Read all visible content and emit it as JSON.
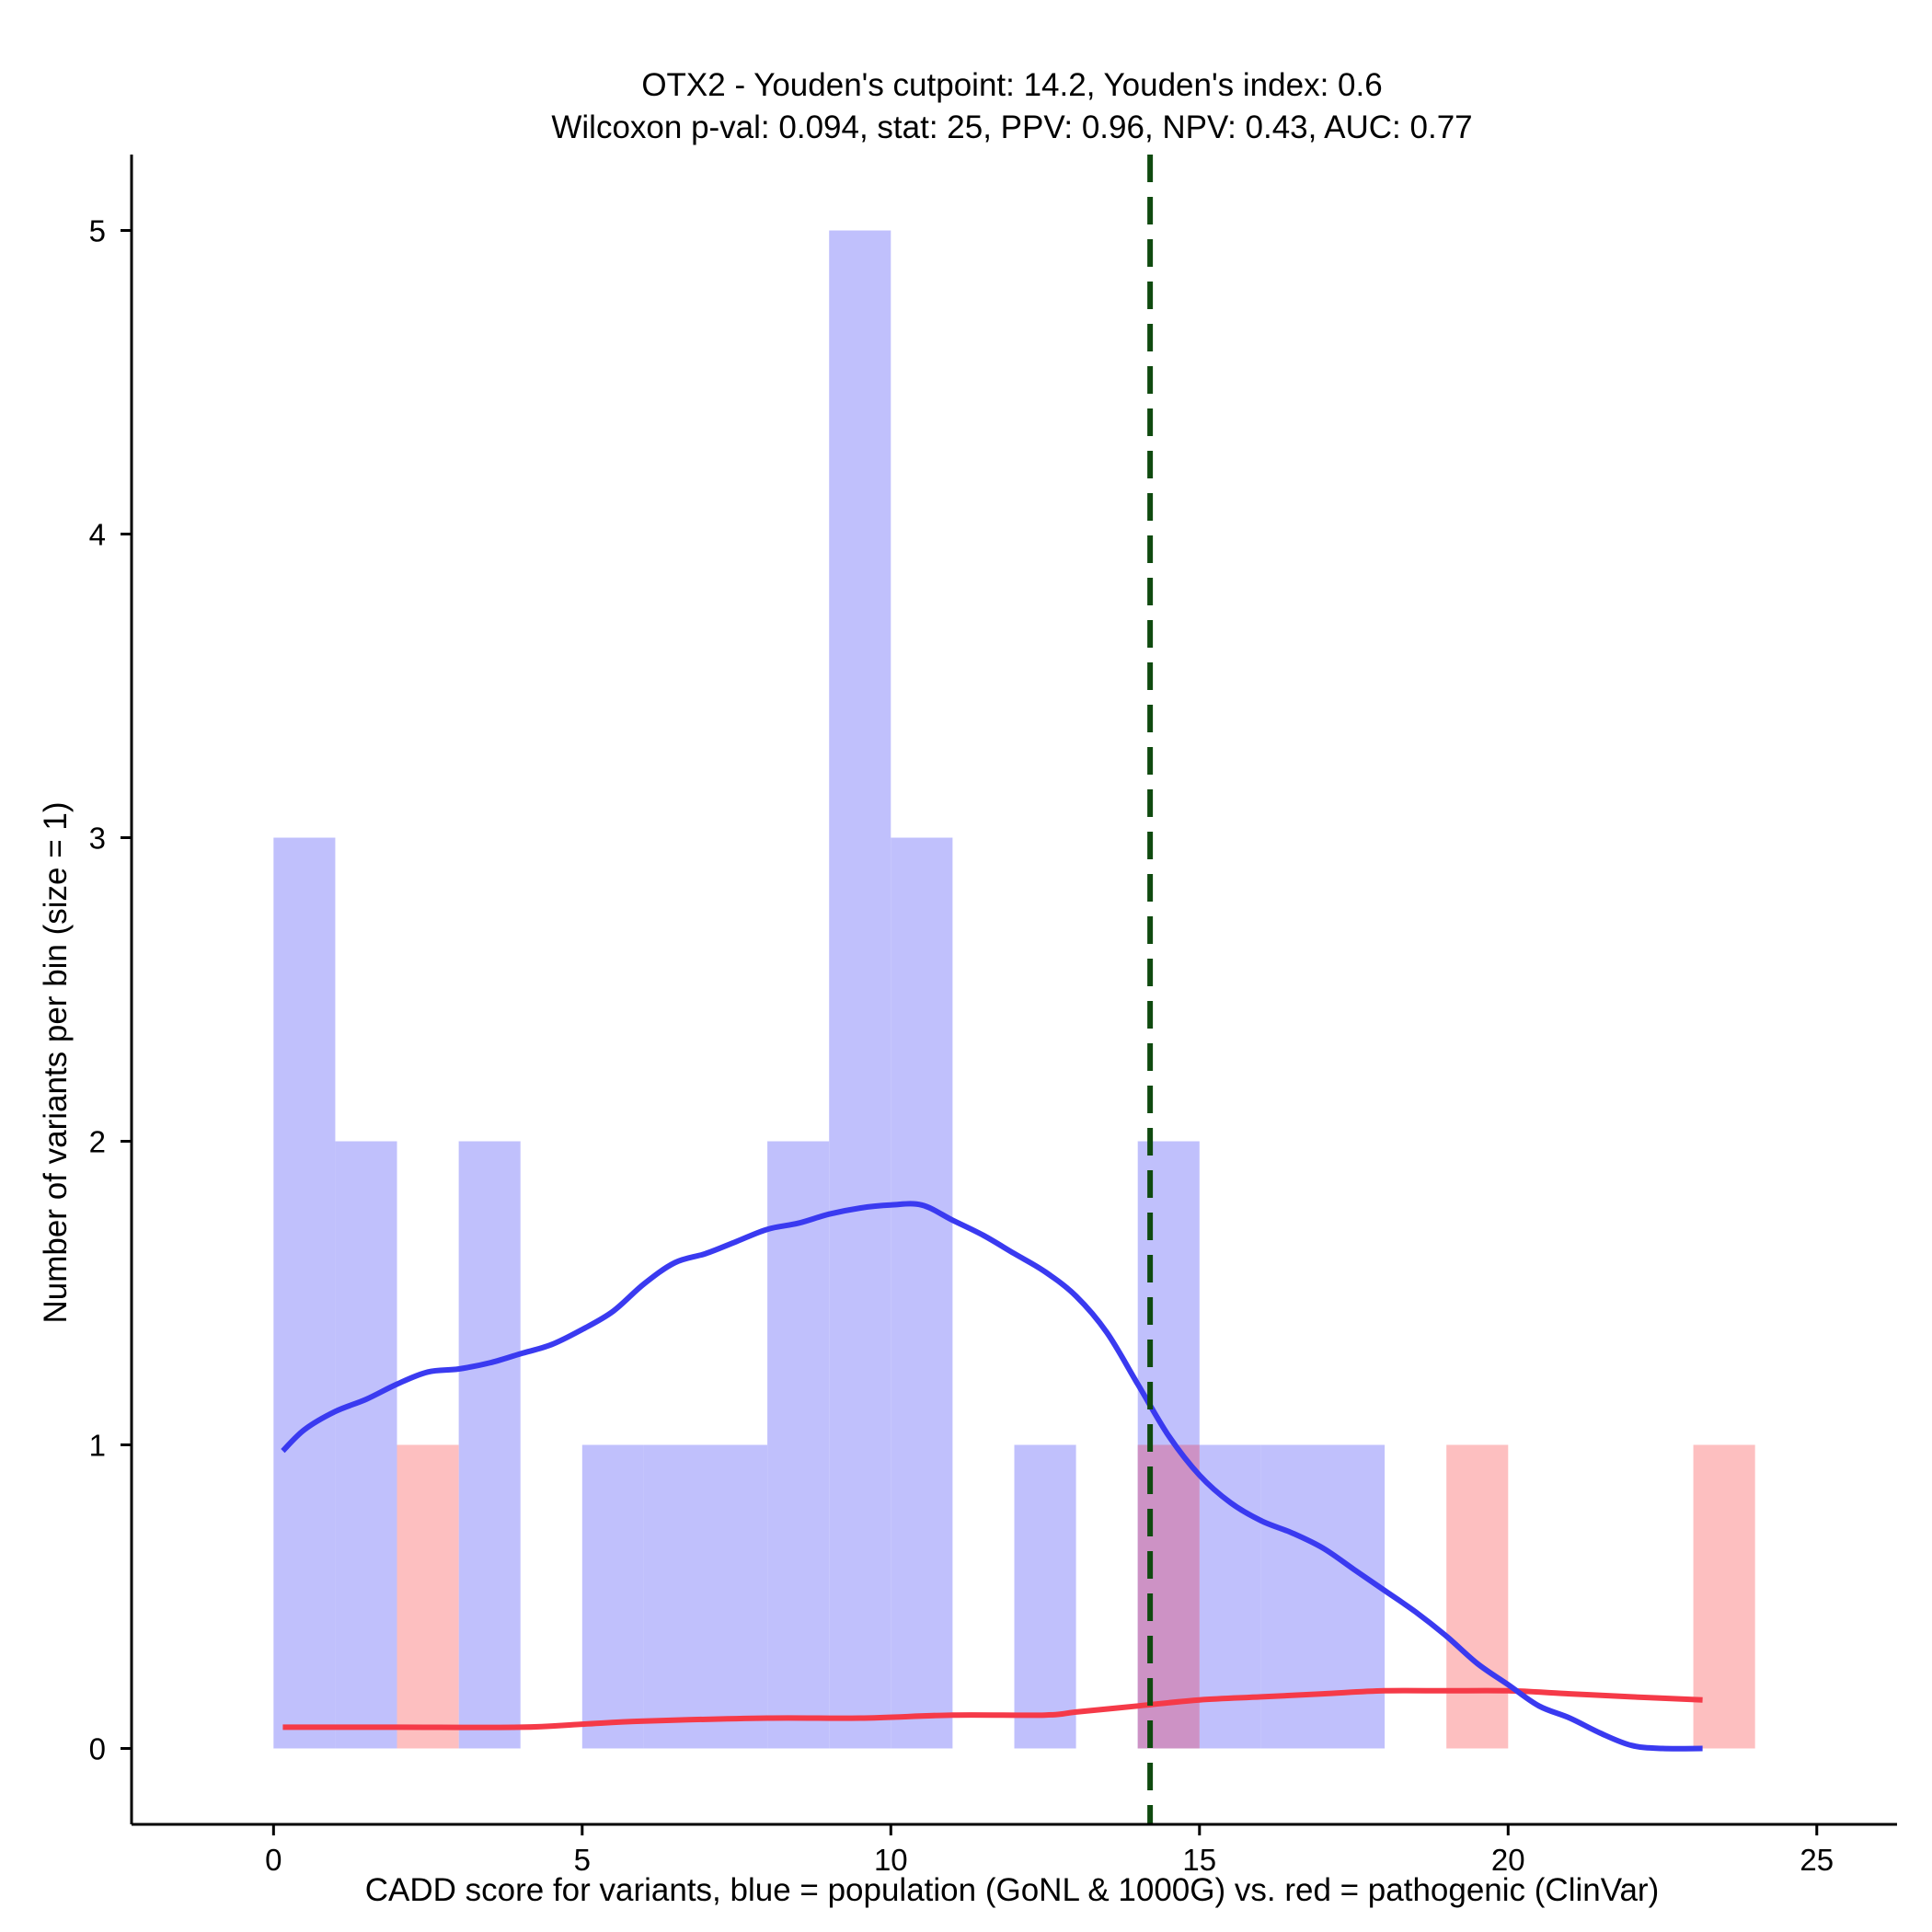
{
  "chart_data": {
    "type": "bar",
    "title": "OTX2 - Youden's cutpoint: 14.2, Youden's index: 0.6",
    "subtitle": "Wilcoxon p-val: 0.094, stat: 25, PPV: 0.96, NPV: 0.43, AUC: 0.77",
    "xlabel": "CADD score for variants, blue = population (GoNL & 1000G) vs. red = pathogenic (ClinVar)",
    "ylabel": "Number of variants per bin (size = 1)",
    "xlim": [
      -2.3,
      26.3
    ],
    "ylim": [
      -0.25,
      5.25
    ],
    "x_ticks": [
      0,
      5,
      10,
      15,
      20,
      25
    ],
    "y_ticks": [
      0,
      1,
      2,
      3,
      4,
      5
    ],
    "bin_size": 1,
    "cutpoint": 14.2,
    "colors": {
      "population_bar": "#c0c0fc",
      "pathogenic_bar": "#fdbfc0",
      "overlap_bar": "#cd92c5",
      "population_line": "#3a3af0",
      "pathogenic_line": "#f53a48",
      "cutpoint_line": "#0f4a0f"
    },
    "series": [
      {
        "name": "population (GoNL & 1000G)",
        "bins": [
          {
            "x0": 0,
            "x1": 1,
            "count": 3
          },
          {
            "x0": 1,
            "x1": 2,
            "count": 2
          },
          {
            "x0": 3,
            "x1": 4,
            "count": 2
          },
          {
            "x0": 5,
            "x1": 6,
            "count": 1
          },
          {
            "x0": 6,
            "x1": 7,
            "count": 1
          },
          {
            "x0": 7,
            "x1": 8,
            "count": 1
          },
          {
            "x0": 8,
            "x1": 9,
            "count": 2
          },
          {
            "x0": 9,
            "x1": 10,
            "count": 5
          },
          {
            "x0": 10,
            "x1": 11,
            "count": 3
          },
          {
            "x0": 12,
            "x1": 13,
            "count": 1
          },
          {
            "x0": 14,
            "x1": 15,
            "count": 2
          },
          {
            "x0": 15,
            "x1": 16,
            "count": 1
          },
          {
            "x0": 16,
            "x1": 17,
            "count": 1
          },
          {
            "x0": 17,
            "x1": 18,
            "count": 1
          }
        ],
        "density": {
          "x": [
            0.15,
            0.5,
            1,
            1.5,
            2,
            2.5,
            3,
            3.5,
            4,
            4.5,
            5,
            5.5,
            6,
            6.5,
            7,
            7.5,
            8,
            8.5,
            9,
            9.5,
            10,
            10.5,
            11,
            11.5,
            12,
            12.5,
            13,
            13.5,
            14,
            14.5,
            15,
            15.5,
            16,
            16.5,
            17,
            17.5,
            18,
            18.5,
            19,
            19.5,
            20,
            20.5,
            21,
            21.5,
            22,
            22.5,
            23.15
          ],
          "y": [
            0.98,
            1.05,
            1.11,
            1.15,
            1.2,
            1.24,
            1.25,
            1.27,
            1.3,
            1.33,
            1.38,
            1.44,
            1.53,
            1.6,
            1.63,
            1.67,
            1.71,
            1.73,
            1.76,
            1.78,
            1.79,
            1.79,
            1.74,
            1.69,
            1.63,
            1.57,
            1.49,
            1.37,
            1.2,
            1.03,
            0.9,
            0.81,
            0.75,
            0.71,
            0.66,
            0.59,
            0.52,
            0.45,
            0.37,
            0.28,
            0.21,
            0.14,
            0.1,
            0.05,
            0.01,
            0.0,
            0.0
          ]
        }
      },
      {
        "name": "pathogenic (ClinVar)",
        "bins": [
          {
            "x0": 2,
            "x1": 3,
            "count": 1
          },
          {
            "x0": 14,
            "x1": 15,
            "count": 1
          },
          {
            "x0": 19,
            "x1": 20,
            "count": 1
          },
          {
            "x0": 23,
            "x1": 24,
            "count": 1
          }
        ],
        "density": {
          "x": [
            0.15,
            2,
            4,
            5,
            6,
            8,
            9.5,
            11,
            12.5,
            13,
            14,
            15,
            16,
            17,
            18,
            19,
            20,
            21,
            22,
            23.15
          ],
          "y": [
            0.07,
            0.07,
            0.07,
            0.08,
            0.09,
            0.1,
            0.1,
            0.11,
            0.11,
            0.12,
            0.14,
            0.16,
            0.17,
            0.18,
            0.19,
            0.19,
            0.19,
            0.18,
            0.17,
            0.16
          ]
        }
      }
    ]
  }
}
